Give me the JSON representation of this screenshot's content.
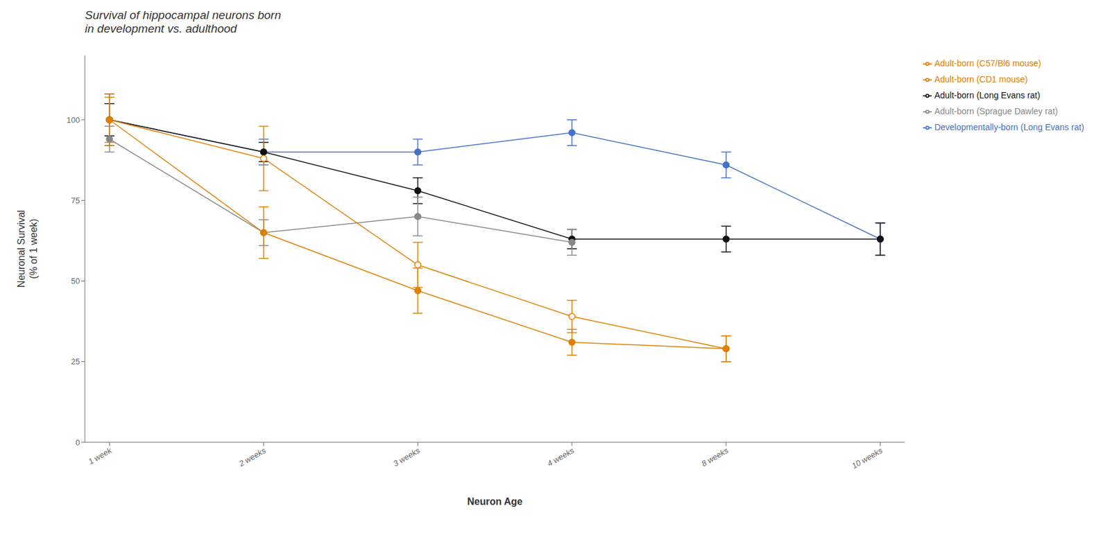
{
  "chart_data": {
    "type": "line",
    "title": "Survival of hippocampal neurons born\nin development vs. adulthood",
    "x_label": "Neuron Age",
    "y_label": "Neuronal Survival\n(% of 1 week)",
    "categories": [
      "1 week",
      "2 weeks",
      "3 weeks",
      "4 weeks",
      "8 weeks",
      "10 weeks"
    ],
    "ylim": [
      0,
      120
    ],
    "yticks": [
      0,
      25,
      50,
      75,
      100
    ],
    "grid": false,
    "legend": "upper right",
    "series": [
      {
        "name": "Developmentally-born (Long Evans rat)",
        "color": "#4472C4",
        "marker": "circle",
        "values": [
          100,
          90,
          90,
          96,
          86,
          63
        ],
        "yerr": [
          8,
          4,
          4,
          4,
          4,
          5
        ]
      },
      {
        "name": "Adult-born (Long Evans rat)",
        "color": "#111111",
        "marker": "circle",
        "values": [
          100,
          90,
          78,
          63,
          63,
          63
        ],
        "yerr": [
          5,
          3,
          4,
          3,
          4,
          5
        ]
      },
      {
        "name": "Adult-born (Sprague Dawley rat)",
        "color": "#888888",
        "marker": "circle",
        "values": [
          94,
          65,
          70,
          62,
          null,
          null
        ],
        "yerr": [
          4,
          4,
          6,
          4,
          null,
          null
        ]
      },
      {
        "name": "Adult-born (CD1 mouse)",
        "color": "#E08000",
        "marker": "open circle",
        "values": [
          100,
          88,
          55,
          39,
          29,
          null
        ],
        "yerr": [
          7,
          10,
          7,
          5,
          4,
          null
        ]
      },
      {
        "name": "Adult-born (C57/Bl6 mouse)",
        "color": "#E08000",
        "marker": "circle",
        "values": [
          100,
          65,
          47,
          31,
          29,
          null
        ],
        "yerr": [
          8,
          8,
          7,
          4,
          4,
          null
        ]
      }
    ]
  }
}
